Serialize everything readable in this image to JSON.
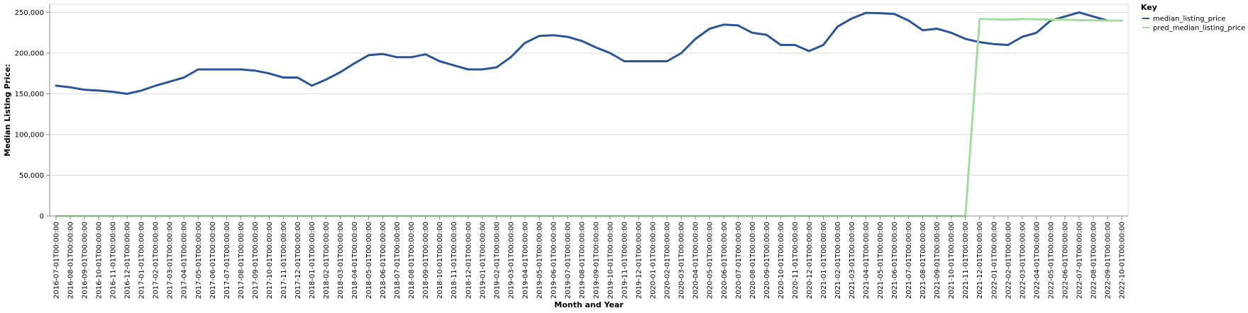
{
  "chart_data": {
    "type": "line",
    "xlabel": "Month and Year",
    "ylabel": "Median Listing Price:",
    "ylim": [
      0,
      260000
    ],
    "yticks": [
      0,
      50000,
      100000,
      150000,
      200000,
      250000
    ],
    "ytick_labels": [
      "0",
      "50,000",
      "100,000",
      "150,000",
      "200,000",
      "250,000"
    ],
    "grid": true,
    "legend": {
      "title": "Key",
      "placement": "top-right"
    },
    "x": [
      "2016-07-01T00:00:00",
      "2016-08-01T00:00:00",
      "2016-09-01T00:00:00",
      "2016-10-01T00:00:00",
      "2016-11-01T00:00:00",
      "2016-12-01T00:00:00",
      "2017-01-01T00:00:00",
      "2017-02-01T00:00:00",
      "2017-03-01T00:00:00",
      "2017-04-01T00:00:00",
      "2017-05-01T00:00:00",
      "2017-06-01T00:00:00",
      "2017-07-01T00:00:00",
      "2017-08-01T00:00:00",
      "2017-09-01T00:00:00",
      "2017-10-01T00:00:00",
      "2017-11-01T00:00:00",
      "2017-12-01T00:00:00",
      "2018-01-01T00:00:00",
      "2018-02-01T00:00:00",
      "2018-03-01T00:00:00",
      "2018-04-01T00:00:00",
      "2018-05-01T00:00:00",
      "2018-06-01T00:00:00",
      "2018-07-01T00:00:00",
      "2018-08-01T00:00:00",
      "2018-09-01T00:00:00",
      "2018-10-01T00:00:00",
      "2018-11-01T00:00:00",
      "2018-12-01T00:00:00",
      "2019-01-01T00:00:00",
      "2019-02-01T00:00:00",
      "2019-03-01T00:00:00",
      "2019-04-01T00:00:00",
      "2019-05-01T00:00:00",
      "2019-06-01T00:00:00",
      "2019-07-01T00:00:00",
      "2019-08-01T00:00:00",
      "2019-09-01T00:00:00",
      "2019-10-01T00:00:00",
      "2019-11-01T00:00:00",
      "2019-12-01T00:00:00",
      "2020-01-01T00:00:00",
      "2020-02-01T00:00:00",
      "2020-03-01T00:00:00",
      "2020-04-01T00:00:00",
      "2020-05-01T00:00:00",
      "2020-06-01T00:00:00",
      "2020-07-01T00:00:00",
      "2020-08-01T00:00:00",
      "2020-09-01T00:00:00",
      "2020-10-01T00:00:00",
      "2020-11-01T00:00:00",
      "2020-12-01T00:00:00",
      "2021-01-01T00:00:00",
      "2021-02-01T00:00:00",
      "2021-03-01T00:00:00",
      "2021-04-01T00:00:00",
      "2021-05-01T00:00:00",
      "2021-06-01T00:00:00",
      "2021-07-01T00:00:00",
      "2021-08-01T00:00:00",
      "2021-09-01T00:00:00",
      "2021-10-01T00:00:00",
      "2021-11-01T00:00:00",
      "2021-12-01T00:00:00",
      "2022-01-01T00:00:00",
      "2022-02-01T00:00:00",
      "2022-03-01T00:00:00",
      "2022-04-01T00:00:00",
      "2022-05-01T00:00:00",
      "2022-06-01T00:00:00",
      "2022-07-01T00:00:00",
      "2022-08-01T00:00:00",
      "2022-09-01T00:00:00",
      "2022-10-01T00:00:00"
    ],
    "series": [
      {
        "name": "median_listing_price",
        "color": "#2a5599",
        "values": [
          160000,
          158000,
          155000,
          154000,
          152500,
          150000,
          154000,
          160000,
          165000,
          170000,
          180000,
          180000,
          180000,
          180000,
          178500,
          175000,
          170000,
          170000,
          160000,
          167500,
          176500,
          187500,
          197500,
          199000,
          195000,
          195000,
          198500,
          190000,
          185000,
          180000,
          180000,
          182500,
          195000,
          212500,
          221000,
          222000,
          220000,
          215000,
          207000,
          200000,
          190000,
          190000,
          190000,
          190000,
          200000,
          217500,
          230000,
          235000,
          234000,
          225000,
          222500,
          210000,
          210000,
          202500,
          210000,
          232500,
          242500,
          249500,
          249000,
          248000,
          240000,
          228000,
          230000,
          225000,
          217500,
          213500,
          211000,
          210000,
          220000,
          225000,
          240000,
          245000,
          250000,
          245000,
          240000,
          240000
        ]
      },
      {
        "name": "pred_median_listing_price",
        "color": "#a4dba0",
        "values": [
          0,
          0,
          0,
          0,
          0,
          0,
          0,
          0,
          0,
          0,
          0,
          0,
          0,
          0,
          0,
          0,
          0,
          0,
          0,
          0,
          0,
          0,
          0,
          0,
          0,
          0,
          0,
          0,
          0,
          0,
          0,
          0,
          0,
          0,
          0,
          0,
          0,
          0,
          0,
          0,
          0,
          0,
          0,
          0,
          0,
          0,
          0,
          0,
          0,
          0,
          0,
          0,
          0,
          0,
          0,
          0,
          0,
          0,
          0,
          0,
          0,
          0,
          0,
          0,
          0,
          242000,
          241500,
          241000,
          241800,
          241500,
          241200,
          241000,
          240500,
          240200,
          240000,
          240000
        ]
      }
    ]
  }
}
